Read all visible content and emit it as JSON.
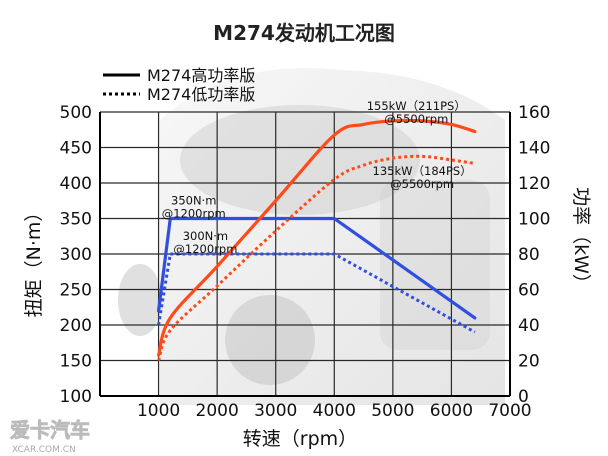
{
  "chart_data": {
    "type": "line",
    "title": "M274发动机工况图",
    "xlabel": "转速（rpm）",
    "ylabel_left": "扭矩（N·m）",
    "ylabel_right": "功率（kW）",
    "xlim": [
      0,
      7000
    ],
    "ylim_left": [
      100,
      500
    ],
    "ylim_right": [
      0,
      160
    ],
    "x_ticks": [
      "1000",
      "2000",
      "3000",
      "4000",
      "5000",
      "6000",
      "7000"
    ],
    "y_left_ticks": [
      "100",
      "150",
      "200",
      "250",
      "300",
      "350",
      "400",
      "450",
      "500"
    ],
    "y_right_ticks": [
      "0",
      "20",
      "40",
      "60",
      "80",
      "100",
      "120",
      "140",
      "160"
    ],
    "grid": true,
    "legend": {
      "position": "top-left",
      "items": [
        {
          "label": "M274高功率版",
          "style": "solid"
        },
        {
          "label": "M274低功率版",
          "style": "dotted"
        }
      ]
    },
    "colors": {
      "torque": "#2f4fe0",
      "power": "#ff4a1a",
      "grid": "#2a2a2a"
    },
    "series": [
      {
        "version": "high",
        "quantity": "torque",
        "axis": "left",
        "style": "solid",
        "x": [
          1000,
          1200,
          4000,
          6400
        ],
        "y": [
          220,
          350,
          350,
          210
        ]
      },
      {
        "version": "low",
        "quantity": "torque",
        "axis": "left",
        "style": "dotted",
        "x": [
          1000,
          1200,
          4000,
          6400
        ],
        "y": [
          200,
          300,
          300,
          190
        ]
      },
      {
        "version": "high",
        "quantity": "power",
        "axis": "right",
        "style": "solid",
        "x": [
          1000,
          1200,
          2000,
          3000,
          4000,
          4500,
          5000,
          5500,
          6000,
          6400
        ],
        "y": [
          23,
          44,
          73,
          110,
          147,
          153,
          155,
          155,
          153,
          149
        ]
      },
      {
        "version": "low",
        "quantity": "power",
        "axis": "right",
        "style": "dotted",
        "x": [
          1000,
          1200,
          2000,
          3000,
          4000,
          4500,
          5000,
          5500,
          6000,
          6400
        ],
        "y": [
          20,
          37,
          62,
          93,
          122,
          130,
          134,
          135,
          133,
          131
        ]
      }
    ],
    "annotations": [
      {
        "text": [
          "155kW（211PS）",
          "@5500rpm"
        ],
        "x": 5400,
        "y_right": 161
      },
      {
        "text": [
          "135kW（184PS）",
          "@5500rpm"
        ],
        "x": 5500,
        "y_right": 124.5
      },
      {
        "text": [
          "350N·m",
          "@1200rpm"
        ],
        "x": 1600,
        "y_left": 370
      },
      {
        "text": [
          "300N·m",
          "@1200rpm"
        ],
        "x": 1800,
        "y_left": 320
      }
    ],
    "watermark": {
      "brand": "爱卡汽车",
      "site": "XCAR.COM.CN"
    }
  }
}
